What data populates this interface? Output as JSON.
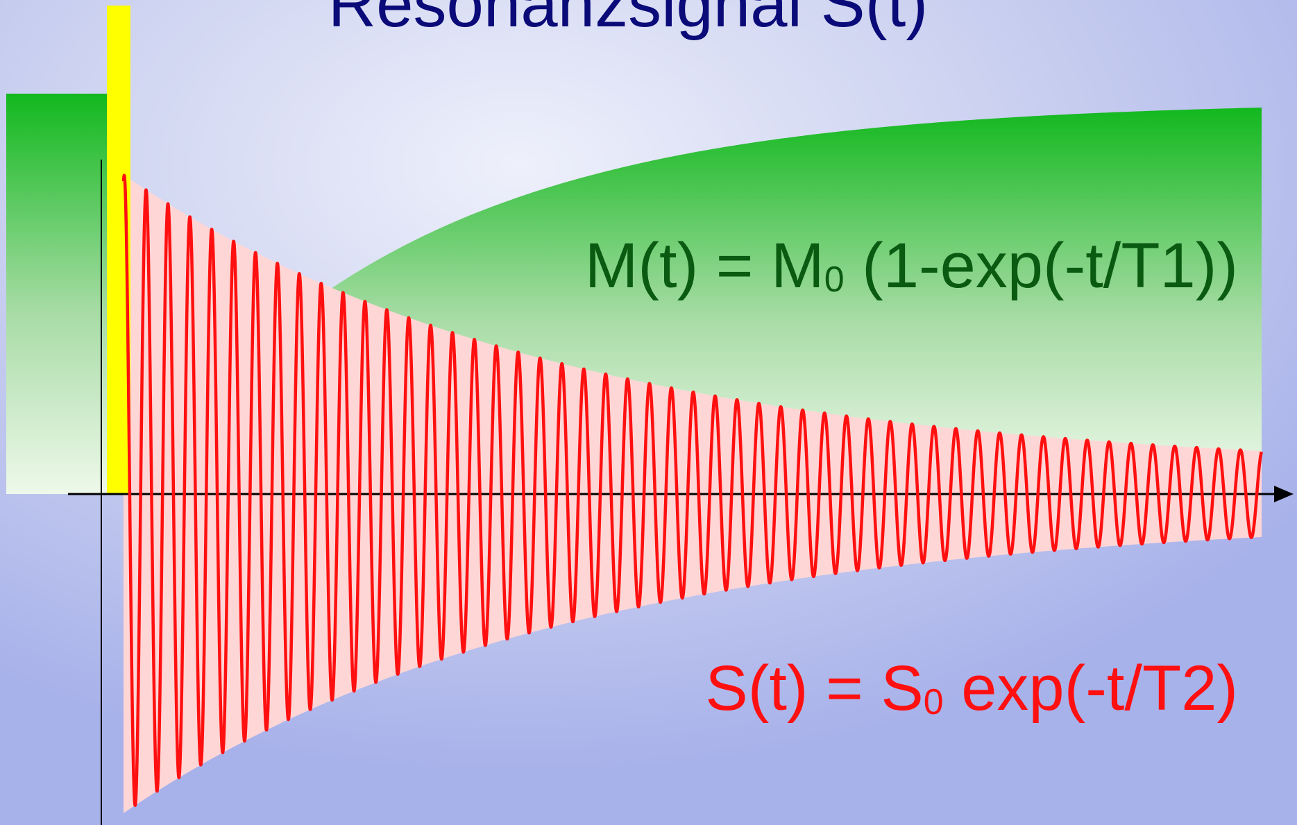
{
  "title": "Resonanzsignal S(t)",
  "formula_m": {
    "prefix": "M(t) = M",
    "subscript": "0",
    "suffix": " (1-exp(-t/T1))"
  },
  "formula_s": {
    "prefix": "S(t) = S",
    "subscript": "0",
    "suffix": " exp(-t/T2)"
  },
  "colors": {
    "background_center": "#eef0fb",
    "background_edge": "#a7b1ea",
    "title": "#0a0a78",
    "magnetization": "#12b81e",
    "magnetization_text": "#0a5a12",
    "pulse": "#ffff00",
    "signal": "#ff1010",
    "signal_envelope_fill": "#ffd6d6",
    "axis": "#000000"
  },
  "icons": [
    "x-axis-arrow"
  ],
  "chart_data": {
    "type": "line",
    "series": [
      {
        "curve": "M(t) = M0 (1-exp(-t/T1))",
        "shape": "saturation-recovery",
        "color": "#12b81e"
      },
      {
        "curve": "S(t) = S0 exp(-t/T2)",
        "shape": "damped-oscillation",
        "oscillations": 52,
        "color": "#ff1010"
      }
    ],
    "pulse": {
      "shape": "rectangular",
      "color": "#ffff00"
    }
  }
}
